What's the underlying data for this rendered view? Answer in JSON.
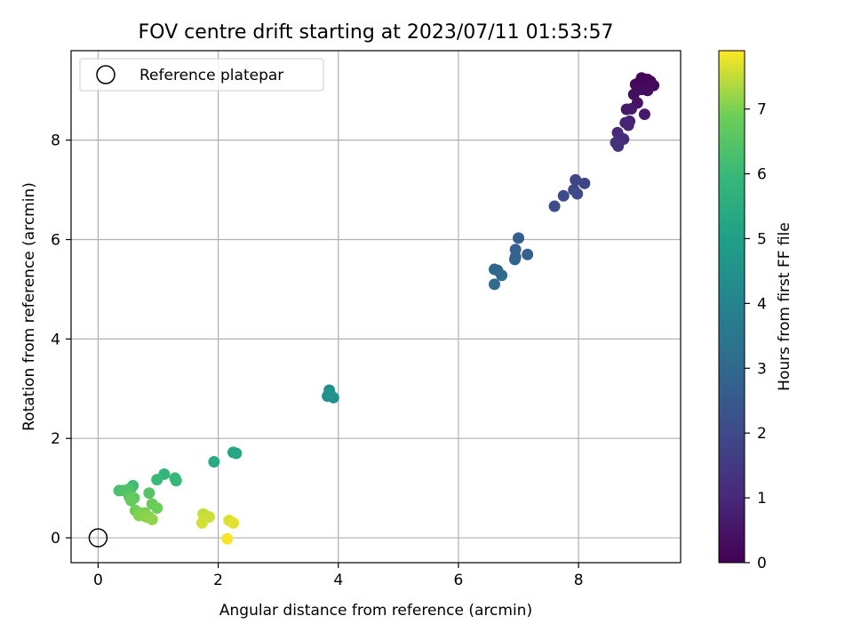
{
  "chart_data": {
    "type": "scatter",
    "title": "FOV centre drift starting at 2023/07/11 01:53:57",
    "xlabel": "Angular distance from reference (arcmin)",
    "ylabel": "Rotation from reference (arcmin)",
    "xlim": [
      -0.45,
      9.7
    ],
    "ylim": [
      -0.5,
      9.8
    ],
    "xticks": [
      0,
      2,
      4,
      6,
      8
    ],
    "yticks": [
      0,
      2,
      4,
      6,
      8
    ],
    "grid": true,
    "legend": {
      "position": "top-left",
      "entries": [
        "Reference platepar"
      ]
    },
    "reference_point": {
      "label": "Reference platepar",
      "x": 0,
      "y": 0
    },
    "colorbar": {
      "label": "Hours from first FF file",
      "colormap": "viridis",
      "range": [
        0,
        7.9
      ],
      "ticks": [
        0,
        1,
        2,
        3,
        4,
        5,
        6,
        7
      ]
    },
    "points": [
      {
        "x": 9.05,
        "y": 9.25,
        "t": 0.05
      },
      {
        "x": 9.15,
        "y": 9.22,
        "t": 0.08
      },
      {
        "x": 9.0,
        "y": 9.15,
        "t": 0.1
      },
      {
        "x": 9.2,
        "y": 9.18,
        "t": 0.12
      },
      {
        "x": 9.1,
        "y": 9.08,
        "t": 0.15
      },
      {
        "x": 8.95,
        "y": 9.12,
        "t": 0.18
      },
      {
        "x": 9.25,
        "y": 9.1,
        "t": 0.2
      },
      {
        "x": 9.05,
        "y": 9.02,
        "t": 0.22
      },
      {
        "x": 9.15,
        "y": 9.0,
        "t": 0.25
      },
      {
        "x": 8.98,
        "y": 9.05,
        "t": 0.28
      },
      {
        "x": 8.92,
        "y": 8.92,
        "t": 0.35
      },
      {
        "x": 8.98,
        "y": 8.75,
        "t": 0.45
      },
      {
        "x": 8.8,
        "y": 8.62,
        "t": 0.55
      },
      {
        "x": 8.88,
        "y": 8.63,
        "t": 0.6
      },
      {
        "x": 9.1,
        "y": 8.52,
        "t": 0.62
      },
      {
        "x": 8.85,
        "y": 8.38,
        "t": 0.8
      },
      {
        "x": 8.78,
        "y": 8.35,
        "t": 0.85
      },
      {
        "x": 8.83,
        "y": 8.3,
        "t": 0.9
      },
      {
        "x": 8.65,
        "y": 8.15,
        "t": 1.05
      },
      {
        "x": 8.7,
        "y": 8.05,
        "t": 1.1
      },
      {
        "x": 8.75,
        "y": 8.02,
        "t": 1.15
      },
      {
        "x": 8.62,
        "y": 7.95,
        "t": 1.25
      },
      {
        "x": 8.66,
        "y": 7.88,
        "t": 1.3
      },
      {
        "x": 7.95,
        "y": 7.2,
        "t": 1.85
      },
      {
        "x": 8.1,
        "y": 7.13,
        "t": 1.9
      },
      {
        "x": 7.92,
        "y": 7.0,
        "t": 1.95
      },
      {
        "x": 7.98,
        "y": 6.92,
        "t": 2.0
      },
      {
        "x": 7.75,
        "y": 6.88,
        "t": 2.05
      },
      {
        "x": 7.6,
        "y": 6.67,
        "t": 2.15
      },
      {
        "x": 7.0,
        "y": 6.03,
        "t": 2.6
      },
      {
        "x": 6.95,
        "y": 5.8,
        "t": 2.7
      },
      {
        "x": 7.15,
        "y": 5.7,
        "t": 2.75
      },
      {
        "x": 6.95,
        "y": 5.65,
        "t": 2.8
      },
      {
        "x": 6.94,
        "y": 5.6,
        "t": 2.85
      },
      {
        "x": 6.6,
        "y": 5.4,
        "t": 2.95
      },
      {
        "x": 6.65,
        "y": 5.38,
        "t": 3.0
      },
      {
        "x": 6.72,
        "y": 5.28,
        "t": 3.05
      },
      {
        "x": 6.6,
        "y": 5.1,
        "t": 3.1
      },
      {
        "x": 3.85,
        "y": 2.97,
        "t": 4.35
      },
      {
        "x": 3.82,
        "y": 2.85,
        "t": 4.4
      },
      {
        "x": 3.92,
        "y": 2.82,
        "t": 4.45
      },
      {
        "x": 3.86,
        "y": 2.9,
        "t": 4.5
      },
      {
        "x": 2.25,
        "y": 1.72,
        "t": 5.25
      },
      {
        "x": 2.3,
        "y": 1.7,
        "t": 5.3
      },
      {
        "x": 1.93,
        "y": 1.53,
        "t": 5.4
      },
      {
        "x": 1.1,
        "y": 1.28,
        "t": 5.85
      },
      {
        "x": 1.28,
        "y": 1.2,
        "t": 5.9
      },
      {
        "x": 1.3,
        "y": 1.15,
        "t": 5.95
      },
      {
        "x": 0.98,
        "y": 1.17,
        "t": 6.0
      },
      {
        "x": 0.58,
        "y": 1.05,
        "t": 6.1
      },
      {
        "x": 0.55,
        "y": 1.0,
        "t": 6.2
      },
      {
        "x": 0.35,
        "y": 0.95,
        "t": 6.3
      },
      {
        "x": 0.42,
        "y": 0.95,
        "t": 6.35
      },
      {
        "x": 0.5,
        "y": 0.97,
        "t": 6.4
      },
      {
        "x": 0.85,
        "y": 0.9,
        "t": 6.5
      },
      {
        "x": 0.52,
        "y": 0.82,
        "t": 6.6
      },
      {
        "x": 0.6,
        "y": 0.8,
        "t": 6.7
      },
      {
        "x": 0.55,
        "y": 0.75,
        "t": 6.75
      },
      {
        "x": 0.9,
        "y": 0.68,
        "t": 6.8
      },
      {
        "x": 0.98,
        "y": 0.6,
        "t": 6.85
      },
      {
        "x": 0.62,
        "y": 0.55,
        "t": 6.9
      },
      {
        "x": 0.7,
        "y": 0.5,
        "t": 6.95
      },
      {
        "x": 0.78,
        "y": 0.5,
        "t": 7.0
      },
      {
        "x": 0.68,
        "y": 0.45,
        "t": 7.05
      },
      {
        "x": 0.85,
        "y": 0.42,
        "t": 7.1
      },
      {
        "x": 0.8,
        "y": 0.42,
        "t": 7.12
      },
      {
        "x": 0.9,
        "y": 0.37,
        "t": 7.15
      },
      {
        "x": 1.75,
        "y": 0.48,
        "t": 7.5
      },
      {
        "x": 1.85,
        "y": 0.42,
        "t": 7.55
      },
      {
        "x": 1.73,
        "y": 0.3,
        "t": 7.6
      },
      {
        "x": 2.18,
        "y": 0.35,
        "t": 7.65
      },
      {
        "x": 2.25,
        "y": 0.3,
        "t": 7.7
      },
      {
        "x": 2.15,
        "y": -0.02,
        "t": 7.85
      }
    ]
  }
}
